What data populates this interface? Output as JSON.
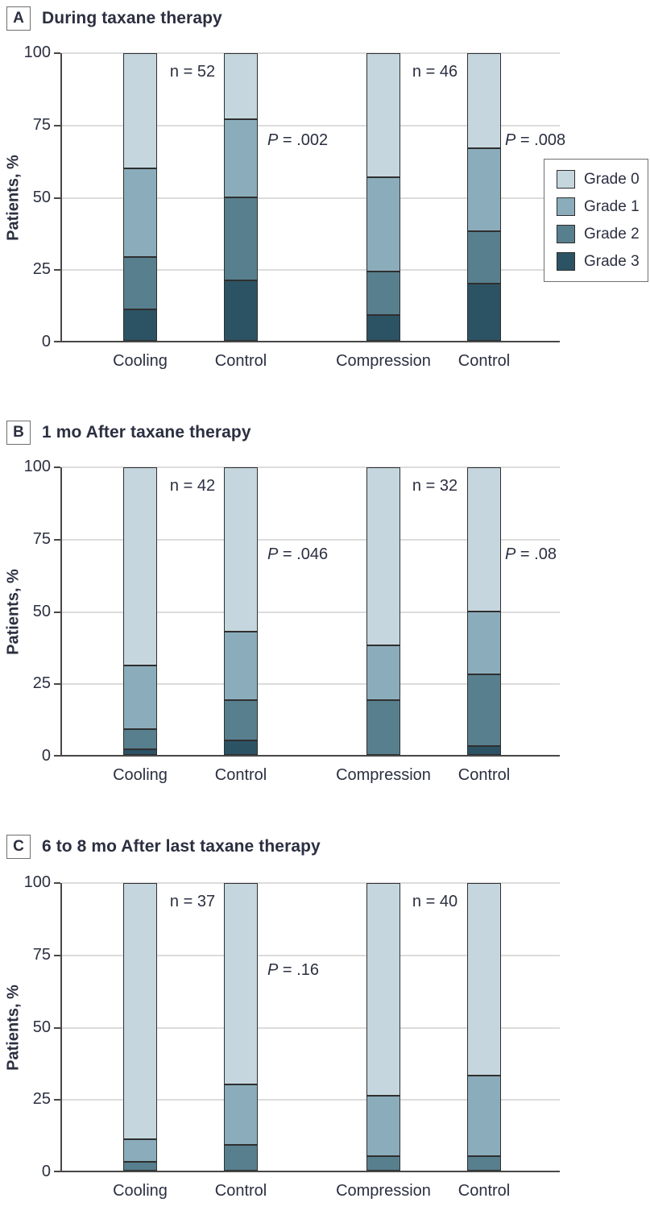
{
  "figure": {
    "y_axis_label": "Patients, %",
    "y_ticks": [
      0,
      25,
      50,
      75,
      100
    ],
    "grade_colors": {
      "Grade 0": "#c5d6de",
      "Grade 1": "#8badbb",
      "Grade 2": "#587f8e",
      "Grade 3": "#2c5364"
    },
    "legend_entries": [
      "Grade 0",
      "Grade 1",
      "Grade 2",
      "Grade 3"
    ],
    "text_color": "#2b2f40",
    "axis_color": "#474747",
    "gridline_color": "#dcdcdc"
  },
  "chart_data": [
    {
      "type": "bar",
      "stacked": true,
      "panel_letter": "A",
      "title": "During taxane therapy",
      "ylabel": "Patients, %",
      "ylim": [
        0,
        100
      ],
      "grid": true,
      "legend_position": "right",
      "categories": [
        "Cooling",
        "Control",
        "Compression",
        "Control"
      ],
      "series": [
        {
          "name": "Grade 3",
          "values": [
            11,
            21,
            9,
            20
          ]
        },
        {
          "name": "Grade 2",
          "values": [
            18,
            29,
            15,
            18
          ]
        },
        {
          "name": "Grade 1",
          "values": [
            31,
            27,
            33,
            29
          ]
        },
        {
          "name": "Grade 0",
          "values": [
            40,
            23,
            43,
            33
          ]
        }
      ],
      "n_labels": [
        "n = 52",
        "n = 46"
      ],
      "p_labels": [
        "P = .002",
        "P = .008"
      ]
    },
    {
      "type": "bar",
      "stacked": true,
      "panel_letter": "B",
      "title": "1 mo After taxane therapy",
      "ylabel": "Patients, %",
      "ylim": [
        0,
        100
      ],
      "grid": true,
      "categories": [
        "Cooling",
        "Control",
        "Compression",
        "Control"
      ],
      "series": [
        {
          "name": "Grade 3",
          "values": [
            2,
            5,
            0,
            3
          ]
        },
        {
          "name": "Grade 2",
          "values": [
            7,
            14,
            19,
            25
          ]
        },
        {
          "name": "Grade 1",
          "values": [
            22,
            24,
            19,
            22
          ]
        },
        {
          "name": "Grade 0",
          "values": [
            69,
            57,
            62,
            50
          ]
        }
      ],
      "n_labels": [
        "n = 42",
        "n = 32"
      ],
      "p_labels": [
        "P = .046",
        "P = .08"
      ]
    },
    {
      "type": "bar",
      "stacked": true,
      "panel_letter": "C",
      "title": "6 to 8 mo After last taxane therapy",
      "ylabel": "Patients, %",
      "ylim": [
        0,
        100
      ],
      "grid": true,
      "categories": [
        "Cooling",
        "Control",
        "Compression",
        "Control"
      ],
      "series": [
        {
          "name": "Grade 3",
          "values": [
            0,
            0,
            0,
            0
          ]
        },
        {
          "name": "Grade 2",
          "values": [
            3,
            9,
            5,
            5
          ]
        },
        {
          "name": "Grade 1",
          "values": [
            8,
            21,
            21,
            28
          ]
        },
        {
          "name": "Grade 0",
          "values": [
            89,
            70,
            74,
            67
          ]
        }
      ],
      "n_labels": [
        "n = 37",
        "n = 40"
      ],
      "p_labels": [
        "P = .16"
      ]
    }
  ]
}
